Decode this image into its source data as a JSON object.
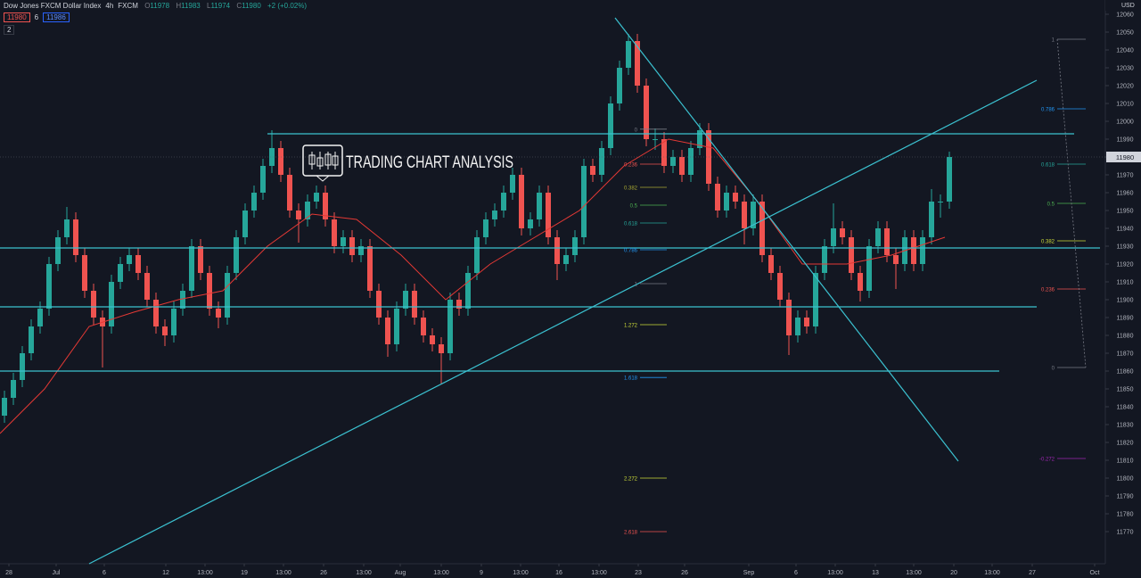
{
  "header": {
    "symbol": "Dow Jones FXCM Dollar Index",
    "interval": "4h",
    "exchange": "FXCM",
    "ohlc_labels": [
      "O",
      "H",
      "L",
      "C"
    ],
    "ohlc": [
      11978,
      11983,
      11974,
      11980
    ],
    "change": "+2 (+0.02%)",
    "bid": 11980,
    "spread": 6,
    "ask": 11986,
    "indicators": 2,
    "currency": "USD"
  },
  "watermark": "TRADING CHART ANALYSIS",
  "chart_data": {
    "type": "candlestick",
    "up_color": "#26a69a",
    "down_color": "#ef5350",
    "grid": false,
    "open": [
      11835,
      11845,
      11855,
      11870,
      11885,
      11895,
      11920,
      11935,
      11945,
      11925,
      11905,
      11890,
      11885,
      11910,
      11920,
      11925,
      11915,
      11900,
      11885,
      11880,
      11895,
      11905,
      11930,
      11915,
      11895,
      11890,
      11915,
      11935,
      11950,
      11960,
      11975,
      11985,
      11970,
      11950,
      11945,
      11955,
      11960,
      11945,
      11930,
      11935,
      11925,
      11930,
      11905,
      11890,
      11875,
      11895,
      11905,
      11890,
      11880,
      11875,
      11870,
      11900,
      11895,
      11915,
      11935,
      11945,
      11950,
      11960,
      11970,
      11940,
      11945,
      11960,
      11935,
      11920,
      11925,
      11935,
      11975,
      11970,
      11985,
      12010,
      12030,
      12045,
      12020,
      11990,
      11990,
      11975,
      11980,
      11970,
      11985,
      11995,
      11965,
      11950,
      11960,
      11955,
      11940,
      11955,
      11925,
      11915,
      11900,
      11880,
      11890,
      11885,
      11915,
      11930,
      11940,
      11935,
      11915,
      11905,
      11930,
      11940,
      11925,
      11920,
      11935,
      11920,
      11935,
      11955,
      11955
    ],
    "high": [
      11849,
      11859,
      11874,
      11889,
      11899,
      11924,
      11939,
      11952,
      11949,
      11929,
      11909,
      11894,
      11914,
      11924,
      11929,
      11929,
      11919,
      11904,
      11889,
      11899,
      11909,
      11934,
      11934,
      11919,
      11899,
      11919,
      11939,
      11954,
      11964,
      11979,
      11995,
      11989,
      11974,
      11954,
      11959,
      11964,
      11964,
      11949,
      11939,
      11939,
      11934,
      11934,
      11909,
      11894,
      11899,
      11909,
      11909,
      11894,
      11884,
      11879,
      11904,
      11904,
      11919,
      11939,
      11949,
      11954,
      11964,
      11974,
      11974,
      11949,
      11964,
      11964,
      11939,
      11929,
      11939,
      11979,
      11979,
      11989,
      12014,
      12034,
      12049,
      12049,
      12024,
      11996,
      11994,
      11984,
      11984,
      11989,
      11999,
      11999,
      11969,
      11964,
      11964,
      11959,
      11959,
      11959,
      11929,
      11919,
      11904,
      11894,
      11894,
      11919,
      11934,
      11954,
      11944,
      11939,
      11919,
      11934,
      11944,
      11944,
      11929,
      11939,
      11939,
      11939,
      11962,
      11959,
      11983
    ],
    "low": [
      11831,
      11841,
      11851,
      11866,
      11881,
      11891,
      11916,
      11931,
      11921,
      11901,
      11886,
      11862,
      11881,
      11906,
      11916,
      11911,
      11896,
      11881,
      11874,
      11876,
      11891,
      11901,
      11911,
      11891,
      11884,
      11886,
      11911,
      11931,
      11946,
      11956,
      11971,
      11966,
      11946,
      11932,
      11941,
      11951,
      11941,
      11926,
      11926,
      11921,
      11921,
      11901,
      11886,
      11868,
      11871,
      11891,
      11886,
      11876,
      11871,
      11853,
      11866,
      11891,
      11891,
      11911,
      11931,
      11941,
      11946,
      11956,
      11936,
      11936,
      11941,
      11931,
      11911,
      11916,
      11921,
      11931,
      11966,
      11966,
      11981,
      12006,
      12026,
      12016,
      11986,
      11984,
      11971,
      11971,
      11966,
      11966,
      11981,
      11961,
      11946,
      11946,
      11951,
      11931,
      11936,
      11921,
      11911,
      11896,
      11869,
      11876,
      11881,
      11881,
      11911,
      11926,
      11931,
      11911,
      11899,
      11901,
      11926,
      11921,
      11906,
      11916,
      11916,
      11916,
      11931,
      11946,
      11951
    ],
    "close": [
      11845,
      11855,
      11870,
      11885,
      11895,
      11920,
      11935,
      11945,
      11925,
      11905,
      11890,
      11885,
      11910,
      11920,
      11925,
      11915,
      11900,
      11885,
      11880,
      11895,
      11905,
      11930,
      11915,
      11895,
      11890,
      11915,
      11935,
      11950,
      11960,
      11975,
      11985,
      11970,
      11950,
      11945,
      11955,
      11960,
      11945,
      11930,
      11935,
      11925,
      11930,
      11905,
      11890,
      11875,
      11895,
      11905,
      11890,
      11880,
      11875,
      11870,
      11900,
      11895,
      11915,
      11935,
      11945,
      11950,
      11960,
      11970,
      11940,
      11945,
      11960,
      11935,
      11920,
      11925,
      11935,
      11975,
      11970,
      11985,
      12010,
      12030,
      12045,
      12020,
      11990,
      11990,
      11975,
      11980,
      11970,
      11985,
      11995,
      11965,
      11950,
      11960,
      11955,
      11940,
      11955,
      11925,
      11915,
      11900,
      11880,
      11890,
      11885,
      11915,
      11930,
      11940,
      11935,
      11915,
      11905,
      11930,
      11940,
      11925,
      11920,
      11935,
      11920,
      11935,
      11955,
      11955,
      11980
    ],
    "xlim": [
      0,
      124
    ],
    "ylim": [
      11752,
      12068
    ],
    "yticks": [
      11770,
      11780,
      11790,
      11800,
      11810,
      11820,
      11830,
      11840,
      11850,
      11860,
      11870,
      11880,
      11890,
      11900,
      11910,
      11920,
      11930,
      11940,
      11950,
      11960,
      11970,
      11980,
      11990,
      12000,
      12010,
      12020,
      12030,
      12040,
      12050,
      12060
    ],
    "xticks": [
      {
        "value": 1.0,
        "label": "28"
      },
      {
        "value": 6.3,
        "label": "Jul"
      },
      {
        "value": 11.7,
        "label": "6"
      },
      {
        "value": 18.6,
        "label": "12"
      },
      {
        "value": 23.0,
        "label": "13:00"
      },
      {
        "value": 27.4,
        "label": "19"
      },
      {
        "value": 31.8,
        "label": "13:00"
      },
      {
        "value": 36.3,
        "label": "26"
      },
      {
        "value": 40.8,
        "label": "13:00"
      },
      {
        "value": 44.9,
        "label": "Aug"
      },
      {
        "value": 49.5,
        "label": "13:00"
      },
      {
        "value": 54.0,
        "label": "9"
      },
      {
        "value": 58.4,
        "label": "13:00"
      },
      {
        "value": 62.7,
        "label": "16"
      },
      {
        "value": 67.2,
        "label": "13:00"
      },
      {
        "value": 71.6,
        "label": "23"
      },
      {
        "value": 76.8,
        "label": "26"
      },
      {
        "value": 84.0,
        "label": "Sep"
      },
      {
        "value": 89.3,
        "label": "6"
      },
      {
        "value": 93.7,
        "label": "13:00"
      },
      {
        "value": 98.2,
        "label": "13"
      },
      {
        "value": 102.5,
        "label": "13:00"
      },
      {
        "value": 107.0,
        "label": "20"
      },
      {
        "value": 111.3,
        "label": "13:00"
      },
      {
        "value": 115.8,
        "label": "27"
      },
      {
        "value": 122.8,
        "label": "Oct"
      }
    ],
    "last_price": 11980,
    "ma": {
      "color": "#e53935",
      "x": [
        0,
        5,
        10,
        15,
        20,
        25,
        30,
        35,
        40,
        45,
        50,
        55,
        60,
        65,
        70,
        75,
        80,
        85,
        90,
        95,
        100,
        106
      ],
      "values": [
        11825,
        11850,
        11885,
        11893,
        11900,
        11905,
        11930,
        11948,
        11945,
        11925,
        11900,
        11920,
        11935,
        11950,
        11975,
        11990,
        11985,
        11955,
        11920,
        11920,
        11925,
        11935
      ]
    },
    "line_color": "#3bc1d0",
    "levels": [
      {
        "price": 11993,
        "x": [
          30,
          120.5
        ]
      },
      {
        "price": 11929,
        "x": [
          0,
          123.4
        ]
      },
      {
        "price": 11896,
        "x": [
          0,
          116.3
        ]
      },
      {
        "price": 11860,
        "x": [
          0,
          112.1
        ]
      }
    ],
    "trendlines": [
      {
        "x": [
          10,
          116.3
        ],
        "y": [
          11752,
          12023
        ]
      },
      {
        "x": [
          69,
          107.5
        ],
        "y": [
          12058,
          11809.5
        ]
      }
    ],
    "fibs": [
      {
        "x": [
          71.8,
          74.8
        ],
        "levels": [
          {
            "level": 0,
            "price": 11995.6,
            "color": "#787b86"
          },
          {
            "level": 0.236,
            "price": 11976,
            "color": "#ef5350"
          },
          {
            "level": 0.382,
            "price": 11963,
            "color": "#a8a832"
          },
          {
            "level": 0.5,
            "price": 11953,
            "color": "#4caf50"
          },
          {
            "level": 0.618,
            "price": 11943,
            "color": "#26a69a"
          },
          {
            "level": 0.786,
            "price": 11928,
            "color": "#2196f3"
          },
          {
            "level": 1,
            "price": 11909,
            "color": "#787b86"
          },
          {
            "level": 1.272,
            "price": 11886,
            "color": "#cddc39"
          },
          {
            "level": 1.618,
            "price": 11856.4,
            "color": "#2196f3"
          },
          {
            "level": 2.272,
            "price": 11800,
            "color": "#cddc39"
          },
          {
            "level": 2.618,
            "price": 11770,
            "color": "#ef5350"
          }
        ]
      },
      {
        "x": [
          118.6,
          121.8
        ],
        "levels": [
          {
            "level": 1,
            "price": 12046,
            "color": "#787b86"
          },
          {
            "level": 0.786,
            "price": 12007,
            "color": "#2196f3"
          },
          {
            "level": 0.618,
            "price": 11976,
            "color": "#26a69a"
          },
          {
            "level": 0.5,
            "price": 11954,
            "color": "#4caf50"
          },
          {
            "level": 0.382,
            "price": 11933,
            "color": "#cddc39"
          },
          {
            "level": 0.236,
            "price": 11906,
            "color": "#ef5350"
          },
          {
            "level": 0,
            "price": 11862,
            "color": "#787b86"
          },
          {
            "level": -0.272,
            "price": 11811,
            "color": "#9c27b0"
          }
        ]
      }
    ]
  }
}
